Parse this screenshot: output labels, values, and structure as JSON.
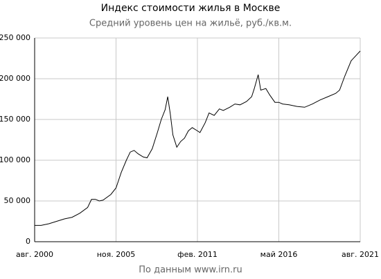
{
  "chart_data": {
    "type": "line",
    "title": "Индекс стоимости жилья в Москве",
    "subtitle": "Средний уровень цен на жильё, руб./кв.м.",
    "source": "По данным www.irn.ru",
    "x": [
      "2000-08",
      "2001-01",
      "2001-07",
      "2002-01",
      "2002-07",
      "2003-01",
      "2003-07",
      "2004-01",
      "2004-04",
      "2004-07",
      "2004-10",
      "2005-01",
      "2005-07",
      "2005-11",
      "2006-03",
      "2006-07",
      "2006-10",
      "2007-01",
      "2007-04",
      "2007-08",
      "2007-11",
      "2008-03",
      "2008-07",
      "2008-10",
      "2009-01",
      "2009-03",
      "2009-05",
      "2009-07",
      "2009-10",
      "2010-01",
      "2010-04",
      "2010-07",
      "2010-10",
      "2011-02",
      "2011-04",
      "2011-08",
      "2011-11",
      "2012-03",
      "2012-07",
      "2012-10",
      "2013-03",
      "2013-07",
      "2013-11",
      "2014-04",
      "2014-08",
      "2014-10",
      "2015-01",
      "2015-03",
      "2015-07",
      "2015-10",
      "2016-02",
      "2016-05",
      "2016-08",
      "2017-01",
      "2017-07",
      "2018-01",
      "2018-07",
      "2019-01",
      "2019-07",
      "2020-01",
      "2020-04",
      "2020-08",
      "2021-01",
      "2021-08"
    ],
    "series": [
      {
        "name": "Индекс",
        "color": "#000000",
        "values": [
          20000,
          20000,
          22000,
          25000,
          28000,
          30000,
          35000,
          42000,
          52000,
          52000,
          50000,
          51000,
          58000,
          66000,
          85000,
          100000,
          110000,
          112000,
          108000,
          104000,
          103000,
          114000,
          134000,
          150000,
          162000,
          178000,
          157000,
          131000,
          116000,
          123000,
          127000,
          136000,
          140000,
          136000,
          134000,
          146000,
          158000,
          155000,
          163000,
          161000,
          165000,
          169000,
          168000,
          172000,
          178000,
          188000,
          205000,
          186000,
          188000,
          180000,
          171000,
          171000,
          169000,
          168000,
          166000,
          165000,
          169000,
          174000,
          178000,
          182000,
          186000,
          203000,
          222000,
          234000
        ]
      }
    ],
    "xlim": [
      "2000-08",
      "2021-08"
    ],
    "xticks": [
      {
        "value": "2000-08",
        "label": "авг. 2000"
      },
      {
        "value": "2005-11",
        "label": "ноя. 2005"
      },
      {
        "value": "2011-02",
        "label": "фев. 2011"
      },
      {
        "value": "2016-05",
        "label": "май 2016"
      },
      {
        "value": "2021-08",
        "label": "авг. 2021"
      }
    ],
    "ylim": [
      0,
      250000
    ],
    "yticks": [
      0,
      {
        "value": 50000,
        "label": "50 000"
      },
      {
        "value": 100000,
        "label": "100 000"
      },
      {
        "value": 150000,
        "label": "150 000"
      },
      {
        "value": 200000,
        "label": "200 000"
      },
      {
        "value": 250000,
        "label": "250 000"
      }
    ],
    "grid": true
  }
}
